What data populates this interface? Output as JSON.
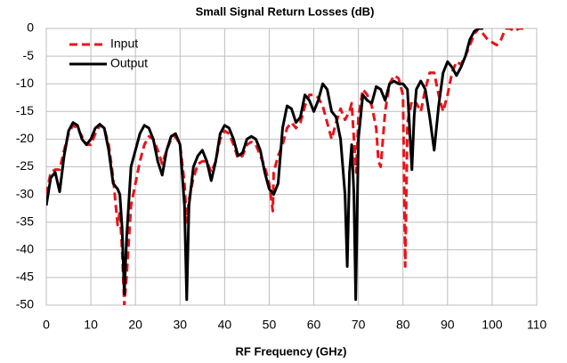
{
  "chart_data": {
    "type": "line",
    "title": "Small Signal Return Losses (dB)",
    "x_label": "RF Frequency  (GHz)",
    "xlim": [
      0,
      110
    ],
    "xticks": [
      0,
      10,
      20,
      30,
      40,
      50,
      60,
      70,
      80,
      90,
      100,
      110
    ],
    "ylim": [
      -50,
      0
    ],
    "yticks": [
      0,
      -5,
      -10,
      -15,
      -20,
      -25,
      -30,
      -35,
      -40,
      -45,
      -50
    ],
    "grid": true,
    "legend": "upper left",
    "series": [
      {
        "name": "Input",
        "color": "#e8141b",
        "linestyle": "dashed",
        "x": [
          0,
          1,
          2,
          3,
          4,
          5,
          6,
          7,
          8,
          9,
          10,
          11,
          12,
          13,
          14,
          15,
          16,
          16.5,
          17,
          17.5,
          18,
          19,
          20,
          21,
          22,
          23,
          24,
          25,
          26,
          27,
          28,
          29,
          30,
          31,
          31.5,
          32,
          33,
          34,
          35,
          36,
          37,
          38,
          39,
          40,
          41,
          42,
          43,
          44,
          45,
          46,
          47,
          48,
          49,
          50,
          50.8,
          51,
          52,
          53,
          54,
          55,
          56,
          57,
          58,
          59,
          60,
          61,
          62,
          63,
          64,
          65,
          66,
          67,
          68,
          68.5,
          69,
          69.5,
          70,
          71,
          72,
          73,
          74,
          74.5,
          75,
          76,
          77,
          78,
          79,
          80,
          80.5,
          81,
          82,
          83,
          84,
          85,
          86,
          87,
          88,
          89,
          90,
          91,
          92,
          93,
          94,
          95,
          96,
          97,
          98,
          99,
          100,
          101,
          102,
          103,
          104,
          105,
          106,
          107
        ],
        "values": [
          -30,
          -26,
          -25.5,
          -25.5,
          -22,
          -19,
          -17.5,
          -18,
          -19.5,
          -21,
          -21,
          -19,
          -17.5,
          -18,
          -21,
          -27,
          -35.5,
          -33,
          -40,
          -50,
          -45,
          -32,
          -28,
          -24,
          -21,
          -19.5,
          -20,
          -22,
          -24.5,
          -22,
          -20,
          -19.5,
          -21,
          -28,
          -35,
          -31,
          -27,
          -24.5,
          -24,
          -24,
          -26,
          -24,
          -20,
          -18.5,
          -19,
          -21,
          -23.5,
          -23,
          -21,
          -20.5,
          -21,
          -23,
          -25,
          -28,
          -33,
          -26,
          -23,
          -21,
          -18,
          -17,
          -18,
          -17,
          -14,
          -12,
          -12,
          -12.5,
          -14,
          -17,
          -20,
          -17,
          -14.5,
          -16.5,
          -15,
          -13.5,
          -20,
          -26,
          -16,
          -11,
          -12,
          -14,
          -18,
          -24,
          -25,
          -15,
          -10,
          -8.5,
          -9,
          -12,
          -43,
          -17,
          -13,
          -13.5,
          -15,
          -11,
          -8,
          -8,
          -12,
          -15,
          -12,
          -8,
          -6,
          -6.5,
          -5,
          -3,
          -1,
          0,
          -1,
          -2,
          -2.5,
          -3,
          -2,
          0,
          0,
          -0.5,
          0,
          0
        ]
      },
      {
        "name": "Output",
        "color": "#000000",
        "linestyle": "solid",
        "x": [
          0,
          1,
          2,
          3,
          4,
          5,
          6,
          7,
          8,
          9,
          10,
          11,
          12,
          13,
          14,
          15,
          16,
          16.5,
          17,
          17.5,
          18,
          19,
          20,
          21,
          22,
          23,
          24,
          25,
          26,
          27,
          28,
          29,
          30,
          31,
          31.5,
          32,
          33,
          34,
          35,
          36,
          37,
          38,
          39,
          40,
          41,
          42,
          43,
          44,
          45,
          46,
          47,
          48,
          49,
          50,
          51,
          52,
          53,
          54,
          55,
          56,
          57,
          58,
          59,
          60,
          61,
          62,
          63,
          64,
          65,
          66,
          67,
          67.5,
          68,
          68.5,
          69,
          69.4,
          70,
          71,
          72,
          73,
          74,
          75,
          76,
          77,
          78,
          79,
          80,
          81,
          82,
          82.5,
          83,
          84,
          85,
          86,
          87,
          88,
          89,
          90,
          91,
          92,
          93,
          94,
          95,
          96,
          97,
          98
        ],
        "values": [
          -32,
          -27,
          -26,
          -29.5,
          -23,
          -18.5,
          -17,
          -17.5,
          -20,
          -21,
          -20,
          -18,
          -17.3,
          -18,
          -22,
          -28,
          -29,
          -30,
          -36,
          -48,
          -38,
          -25,
          -22,
          -19,
          -17.5,
          -18,
          -20,
          -24,
          -26.5,
          -22,
          -19.5,
          -19,
          -21,
          -32,
          -49,
          -32,
          -25,
          -23,
          -22,
          -24,
          -27.5,
          -24,
          -19,
          -17.5,
          -18,
          -20,
          -23,
          -22.5,
          -20,
          -19.5,
          -20,
          -22,
          -26,
          -29,
          -30,
          -28,
          -18,
          -14,
          -14.5,
          -17,
          -16,
          -12,
          -13,
          -15,
          -13,
          -10,
          -11,
          -15,
          -16,
          -20,
          -30,
          -43,
          -26,
          -21,
          -30,
          -49,
          -20,
          -12,
          -13,
          -13.5,
          -10.5,
          -11,
          -13,
          -10,
          -9.5,
          -10,
          -10,
          -11,
          -25.5,
          -16,
          -11,
          -9.5,
          -11,
          -16,
          -22,
          -14,
          -8,
          -6,
          -7,
          -8.5,
          -7,
          -5,
          -2,
          -0.5,
          0,
          0
        ]
      }
    ]
  }
}
